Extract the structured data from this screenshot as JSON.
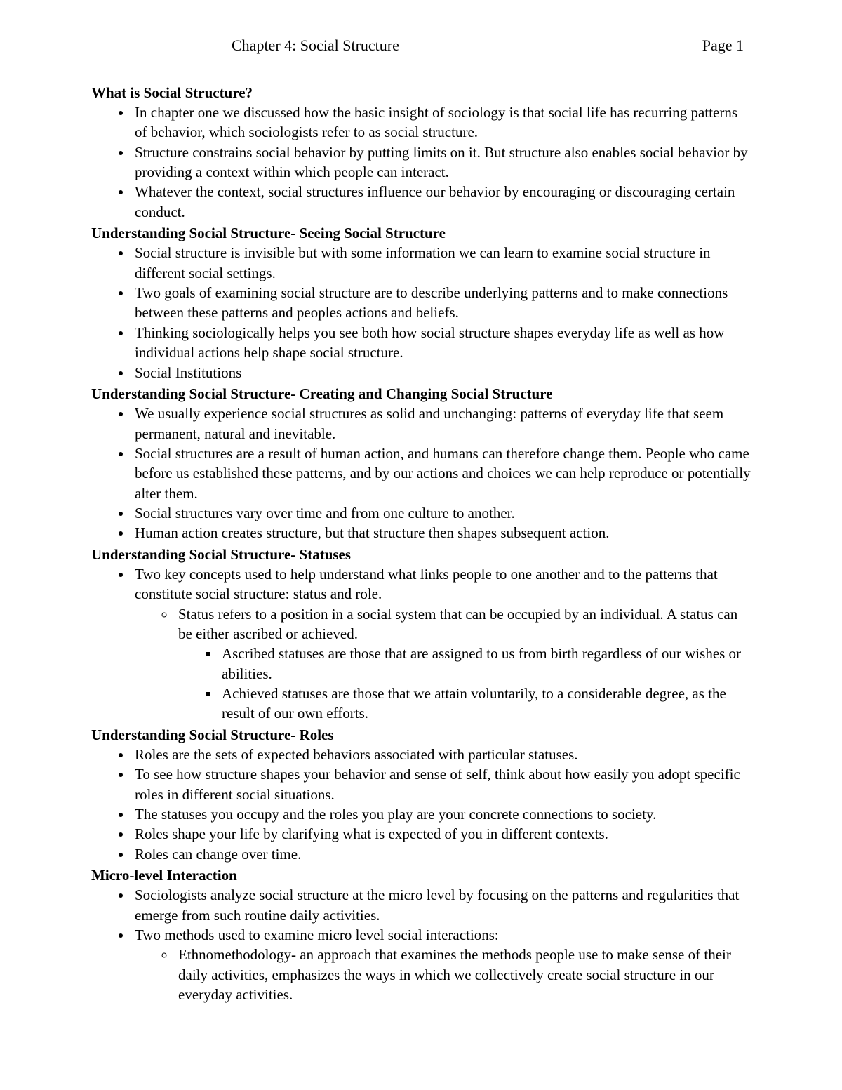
{
  "header": {
    "title": "Chapter 4: Social Structure",
    "page": "Page 1"
  },
  "sections": [
    {
      "heading": "What is Social Structure?",
      "bullets": [
        "In chapter one we discussed how the basic insight of sociology is that social life has recurring patterns of behavior, which sociologists refer to as social structure.",
        "Structure constrains social behavior by putting limits on it. But structure also enables social behavior by providing a context within which people can interact.",
        "Whatever the context, social structures influence our behavior by encouraging or discouraging certain conduct."
      ]
    },
    {
      "heading": "Understanding Social Structure- Seeing Social Structure",
      "bullets": [
        "Social structure is invisible but with some information we can learn to examine social structure in different social settings.",
        "Two goals of examining social structure are to describe underlying patterns and to make connections between these patterns and peoples actions and beliefs.",
        "Thinking sociologically helps you see both how social structure shapes everyday life as well as how individual actions help shape social structure.",
        "Social Institutions"
      ]
    },
    {
      "heading": "Understanding Social Structure- Creating and Changing Social Structure",
      "bullets": [
        "We usually experience social structures as solid and unchanging: patterns of everyday life that seem permanent, natural and inevitable.",
        "Social structures are a result of human action, and humans can therefore change them. People who came before us established these patterns, and by our actions and choices we can help reproduce or potentially alter them.",
        "Social structures vary over time and from one culture to another.",
        "Human action creates structure, but that structure then shapes subsequent action."
      ]
    },
    {
      "heading": "Understanding Social Structure- Statuses",
      "bullets_nested": {
        "text": "Two key concepts used to help understand what links people to one another and to the patterns that constitute social structure: status and role.",
        "sub": {
          "text": "Status refers to a position in a social system that can be occupied by an individual. A status can be either ascribed or achieved.",
          "subs": [
            "Ascribed statuses are those that are assigned to us from birth regardless of our wishes or abilities.",
            "Achieved statuses are those that we attain voluntarily, to a considerable degree, as the result of our own efforts."
          ]
        }
      }
    },
    {
      "heading": "Understanding Social Structure- Roles",
      "bullets": [
        "Roles are the sets of expected behaviors associated with particular statuses.",
        " To see how structure shapes your behavior and sense of self, think about how easily you adopt specific roles in different social situations.",
        "The statuses you occupy and the roles you play are your concrete connections to society.",
        "Roles shape your life by clarifying what is expected of you in different contexts.",
        "Roles can change over time."
      ]
    },
    {
      "heading": "Micro-level Interaction",
      "bullets_mixed": [
        {
          "text": "Sociologists analyze social structure at the micro level by focusing on the patterns and regularities that emerge from such routine daily activities."
        },
        {
          "text": "Two methods used to examine micro level social interactions:",
          "subs": [
            "Ethnomethodology- an approach that examines the methods people use to make sense of their daily activities, emphasizes the ways in which we collectively create social structure in our everyday activities."
          ]
        }
      ]
    }
  ]
}
